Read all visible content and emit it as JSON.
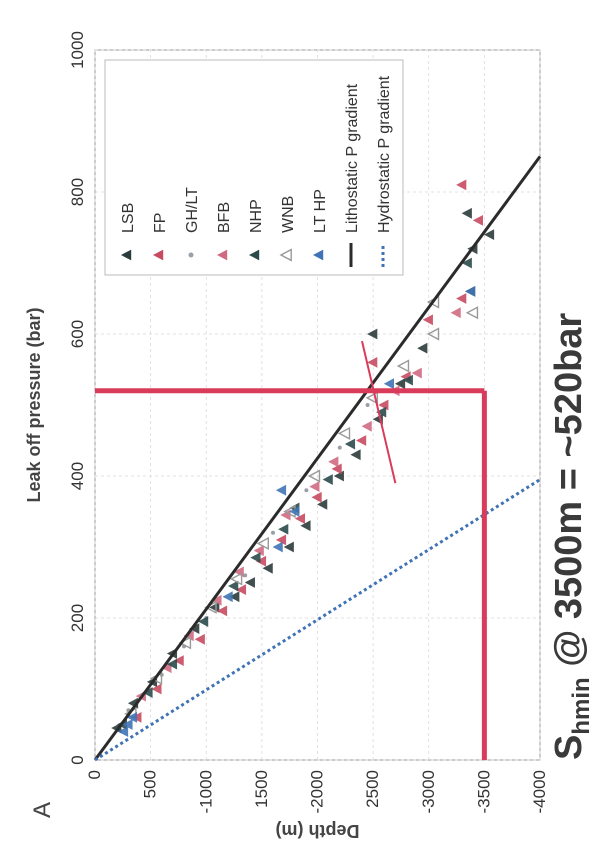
{
  "panel_label": "A",
  "annotation": {
    "main": "S",
    "subscript": "hmin",
    "rest": " @ 3500m = ~520bar"
  },
  "colors": {
    "lithostatic": "#2b2b2b",
    "hydrostatic": "#3f73b5",
    "highlight": "#d93b5b"
  },
  "chart_data": {
    "type": "scatter",
    "xlabel": "Leak off pressure (bar)",
    "ylabel": "Depth (m)",
    "xlim": [
      0,
      1000
    ],
    "ylim": [
      -4000,
      0
    ],
    "x_ticks": [
      0,
      200,
      400,
      600,
      800,
      1000
    ],
    "x_tick_labels": [
      "0",
      "200",
      "400",
      "600",
      "800",
      "1000"
    ],
    "y_ticks": [
      0,
      -500,
      -1000,
      -1500,
      -2000,
      -2500,
      -3000,
      -3500,
      -4000
    ],
    "y_tick_labels": [
      "0",
      "500",
      "-1000",
      "1500",
      "-2000",
      "2500",
      "-3000",
      "-3500",
      "-4000"
    ],
    "grid": true,
    "legend_position": "top-right",
    "legend": [
      {
        "name": "LSB",
        "color": "#2c3b3b",
        "marker": "triangle"
      },
      {
        "name": "FP",
        "color": "#c84a60",
        "marker": "triangle"
      },
      {
        "name": "GH/LT",
        "color": "#9aa0a8",
        "marker": "dot"
      },
      {
        "name": "BFB",
        "color": "#d06a82",
        "marker": "triangle"
      },
      {
        "name": "NHP",
        "color": "#2b4a4a",
        "marker": "triangle"
      },
      {
        "name": "WNB",
        "color": "#9a9a9a",
        "marker": "triangle-open"
      },
      {
        "name": "LT HP",
        "color": "#3f73b5",
        "marker": "triangle"
      },
      {
        "name": "Lithostatic P gradient",
        "color": "#2b2b2b",
        "marker": "line"
      },
      {
        "name": "Hydrostatic P gradient",
        "color": "#3f73b5",
        "marker": "dotted-line"
      }
    ],
    "lines": [
      {
        "name": "Lithostatic P gradient",
        "points": [
          [
            0,
            0
          ],
          [
            850,
            -4000
          ]
        ],
        "style": "solid"
      },
      {
        "name": "Hydrostatic P gradient",
        "points": [
          [
            0,
            0
          ],
          [
            395,
            -4000
          ]
        ],
        "style": "dotted"
      },
      {
        "name": "horizontal-marker",
        "points": [
          [
            0,
            -3500
          ],
          [
            520,
            -3500
          ]
        ],
        "style": "highlight"
      },
      {
        "name": "vertical-marker",
        "points": [
          [
            520,
            -3500
          ],
          [
            520,
            0
          ]
        ],
        "style": "highlight"
      },
      {
        "name": "trend-line",
        "points": [
          [
            390,
            -2700
          ],
          [
            590,
            -2400
          ]
        ],
        "style": "highlight-thin"
      }
    ],
    "series": [
      {
        "name": "LSB",
        "points": [
          [
            45,
            -200
          ],
          [
            80,
            -350
          ],
          [
            110,
            -520
          ],
          [
            150,
            -700
          ],
          [
            185,
            -900
          ],
          [
            215,
            -1080
          ],
          [
            230,
            -1260
          ],
          [
            250,
            -1400
          ],
          [
            270,
            -1560
          ],
          [
            300,
            -1750
          ],
          [
            330,
            -1900
          ],
          [
            360,
            -2050
          ],
          [
            400,
            -2200
          ],
          [
            430,
            -2350
          ],
          [
            480,
            -2550
          ],
          [
            530,
            -2750
          ],
          [
            580,
            -2950
          ],
          [
            600,
            -2500
          ],
          [
            720,
            -3400
          ],
          [
            770,
            -3350
          ],
          [
            740,
            -3550
          ]
        ]
      },
      {
        "name": "FP",
        "points": [
          [
            60,
            -380
          ],
          [
            100,
            -560
          ],
          [
            140,
            -760
          ],
          [
            170,
            -950
          ],
          [
            210,
            -1150
          ],
          [
            240,
            -1320
          ],
          [
            280,
            -1500
          ],
          [
            310,
            -1680
          ],
          [
            340,
            -1850
          ],
          [
            370,
            -2000
          ],
          [
            410,
            -2180
          ],
          [
            450,
            -2400
          ],
          [
            500,
            -2600
          ],
          [
            540,
            -2800
          ],
          [
            560,
            -2500
          ],
          [
            620,
            -3000
          ],
          [
            650,
            -3300
          ],
          [
            760,
            -3450
          ],
          [
            810,
            -3300
          ]
        ]
      },
      {
        "name": "GH/LT",
        "points": [
          [
            70,
            -300
          ],
          [
            120,
            -600
          ],
          [
            160,
            -800
          ],
          [
            200,
            -1000
          ],
          [
            260,
            -1350
          ],
          [
            320,
            -1600
          ],
          [
            380,
            -1900
          ],
          [
            440,
            -2200
          ],
          [
            500,
            -2450
          ]
        ]
      },
      {
        "name": "BFB",
        "points": [
          [
            90,
            -420
          ],
          [
            130,
            -650
          ],
          [
            175,
            -850
          ],
          [
            225,
            -1100
          ],
          [
            265,
            -1300
          ],
          [
            295,
            -1480
          ],
          [
            345,
            -1720
          ],
          [
            385,
            -1980
          ],
          [
            420,
            -2150
          ],
          [
            470,
            -2450
          ],
          [
            520,
            -2700
          ],
          [
            545,
            -2900
          ],
          [
            630,
            -3250
          ]
        ]
      },
      {
        "name": "NHP",
        "points": [
          [
            50,
            -250
          ],
          [
            95,
            -480
          ],
          [
            135,
            -700
          ],
          [
            195,
            -980
          ],
          [
            245,
            -1250
          ],
          [
            285,
            -1450
          ],
          [
            325,
            -1700
          ],
          [
            355,
            -1800
          ],
          [
            395,
            -2100
          ],
          [
            445,
            -2300
          ],
          [
            490,
            -2580
          ],
          [
            535,
            -2820
          ],
          [
            660,
            -3380
          ],
          [
            700,
            -3350
          ]
        ]
      },
      {
        "name": "WNB",
        "points": [
          [
            65,
            -330
          ],
          [
            115,
            -560
          ],
          [
            165,
            -820
          ],
          [
            215,
            -1050
          ],
          [
            255,
            -1280
          ],
          [
            305,
            -1520
          ],
          [
            350,
            -1760
          ],
          [
            400,
            -1980
          ],
          [
            460,
            -2250
          ],
          [
            510,
            -2500
          ],
          [
            555,
            -2780
          ],
          [
            600,
            -3050
          ],
          [
            645,
            -3050
          ],
          [
            630,
            -3400
          ]
        ]
      },
      {
        "name": "LT HP",
        "points": [
          [
            40,
            -260
          ],
          [
            50,
            -300
          ],
          [
            60,
            -340
          ],
          [
            230,
            -1200
          ],
          [
            300,
            -1650
          ],
          [
            350,
            -1800
          ],
          [
            380,
            -1680
          ],
          [
            530,
            -2650
          ],
          [
            660,
            -3380
          ]
        ]
      }
    ]
  }
}
